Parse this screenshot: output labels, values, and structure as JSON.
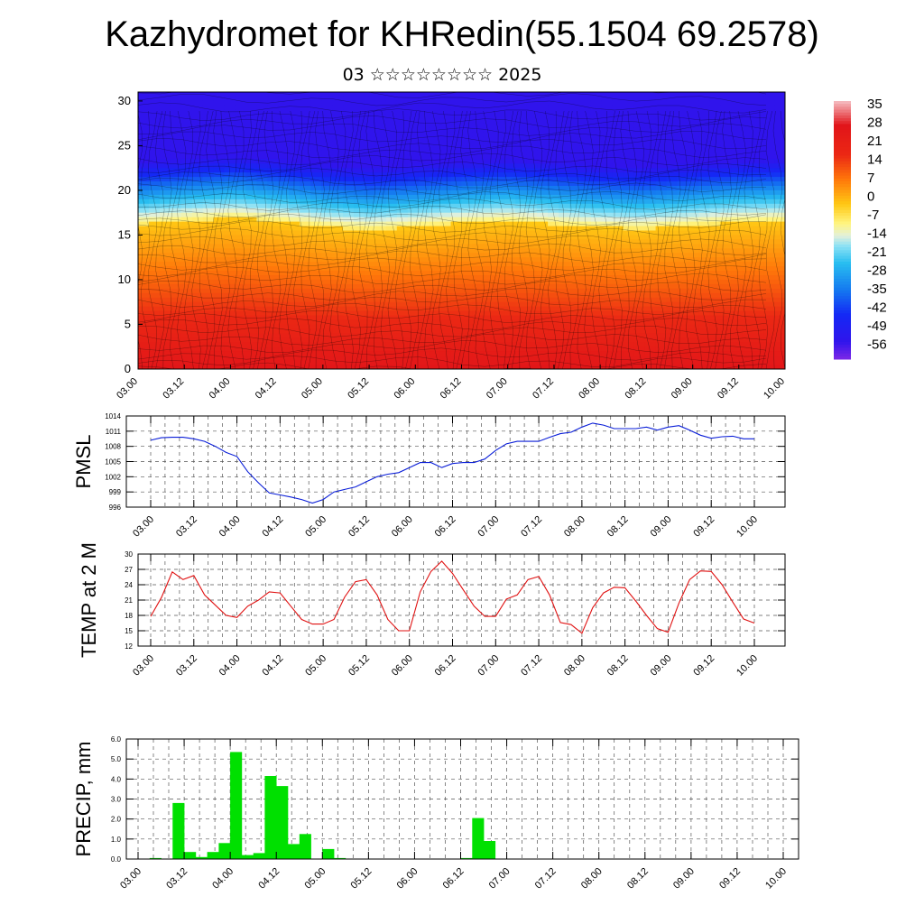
{
  "title": "Kazhydromet for KHRedin(55.1504 69.2578)",
  "subtitle": "03 ☆☆☆☆☆☆☆☆ 2025",
  "colors": {
    "pmsl": "#0a1ed8",
    "temp": "#e01010",
    "precip": "#00e000",
    "frame": "#000000"
  },
  "chart_data": [
    {
      "type": "heatmap",
      "panel": "vertical-cross-section",
      "y_ticks": [
        "0",
        "5",
        "10",
        "15",
        "20",
        "25",
        "30"
      ],
      "ylim": [
        0,
        31
      ],
      "x_ticks": [
        "03.00",
        "03.12",
        "04.00",
        "04.12",
        "05.00",
        "05.12",
        "06.00",
        "06.12",
        "07.00",
        "07.12",
        "08.00",
        "08.12",
        "09.00",
        "09.12",
        "10.00"
      ],
      "colorbar_labels": [
        "35",
        "28",
        "21",
        "14",
        "7",
        "0",
        "-7",
        "-14",
        "-21",
        "-28",
        "-35",
        "-42",
        "-49",
        "-56"
      ],
      "colorbar_range": [
        -63,
        42
      ],
      "freezing_level": [
        16.2,
        16.6,
        16.9,
        16.5,
        15.9,
        15.6,
        15.9,
        16.3,
        16.5,
        16.2,
        15.8,
        15.7,
        16.0,
        16.4,
        16.5
      ]
    },
    {
      "type": "line",
      "name": "PMSL",
      "ylabel": "PMSL",
      "y_ticks": [
        "1014",
        "1011",
        "1008",
        "1005",
        "1002",
        "999",
        "996"
      ],
      "ylim": [
        996,
        1014
      ],
      "x_ticks": [
        "03.00",
        "03.12",
        "04.00",
        "04.12",
        "05.00",
        "05.12",
        "06.00",
        "06.12",
        "07.00",
        "07.12",
        "08.00",
        "08.12",
        "09.00",
        "09.12",
        "10.00"
      ],
      "values": [
        1009.2,
        1009.7,
        1009.8,
        1009.8,
        1009.5,
        1009.0,
        1008.0,
        1006.8,
        1006.0,
        1003.0,
        1000.8,
        998.8,
        998.4,
        998.0,
        997.5,
        996.8,
        997.5,
        999.0,
        999.5,
        1000.0,
        1001.0,
        1002.0,
        1002.5,
        1002.8,
        1003.8,
        1004.8,
        1004.8,
        1003.8,
        1004.6,
        1004.8,
        1004.8,
        1005.5,
        1007.2,
        1008.5,
        1009.0,
        1009.0,
        1009.0,
        1009.8,
        1010.5,
        1010.8,
        1011.8,
        1012.6,
        1012.2,
        1011.5,
        1011.5,
        1011.5,
        1011.8,
        1011.2,
        1011.8,
        1012.1,
        1011.2,
        1010.2,
        1009.6,
        1009.9,
        1010.0,
        1009.5,
        1009.5
      ]
    },
    {
      "type": "line",
      "name": "TEMP at 2 M",
      "ylabel": "TEMP at 2 M",
      "y_ticks": [
        "30",
        "27",
        "24",
        "21",
        "18",
        "15",
        "12"
      ],
      "ylim": [
        12,
        30
      ],
      "x_ticks": [
        "03.00",
        "03.12",
        "04.00",
        "04.12",
        "05.00",
        "05.12",
        "06.00",
        "06.12",
        "07.00",
        "07.12",
        "08.00",
        "08.12",
        "09.00",
        "09.12",
        "10.00"
      ],
      "values": [
        17.8,
        21.5,
        26.5,
        25.0,
        25.8,
        22.0,
        20.0,
        18.0,
        17.6,
        19.8,
        21.0,
        22.6,
        22.4,
        19.8,
        17.2,
        16.3,
        16.3,
        17.2,
        21.6,
        24.6,
        25.0,
        22.0,
        17.2,
        15.0,
        15.0,
        22.6,
        26.6,
        28.6,
        26.2,
        23.0,
        19.8,
        17.8,
        17.8,
        21.2,
        22.0,
        25.0,
        25.6,
        22.0,
        16.6,
        16.2,
        14.5,
        19.5,
        22.4,
        23.5,
        23.4,
        20.8,
        18.0,
        15.4,
        14.7,
        20.4,
        25.0,
        26.7,
        26.6,
        24.0,
        20.6,
        17.3,
        16.5
      ]
    },
    {
      "type": "bar",
      "name": "PRECIP, mm",
      "ylabel": "PRECIP, mm",
      "y_ticks": [
        "6.0",
        "5.0",
        "4.0",
        "3.0",
        "2.0",
        "1.0",
        "0.0"
      ],
      "ylim": [
        0,
        6
      ],
      "x_ticks": [
        "03.00",
        "03.12",
        "04.00",
        "04.12",
        "05.00",
        "05.12",
        "06.00",
        "06.12",
        "07.00",
        "07.12",
        "08.00",
        "08.12",
        "09.00",
        "09.12",
        "10.00"
      ],
      "values": [
        0.0,
        0.05,
        0.0,
        2.8,
        0.35,
        0.1,
        0.35,
        0.8,
        5.35,
        0.2,
        0.3,
        4.15,
        3.65,
        0.75,
        1.25,
        0.0,
        0.5,
        0.05,
        0.0,
        0.0,
        0.0,
        0.0,
        0.0,
        0.0,
        0.0,
        0.0,
        0.0,
        0.0,
        0.05,
        2.05,
        0.9,
        0.0,
        0.0,
        0.0,
        0.0,
        0.0,
        0.0,
        0.0,
        0.0,
        0.0,
        0.0,
        0.0,
        0.0,
        0.0,
        0.0,
        0.0,
        0.0,
        0.0,
        0.0,
        0.0,
        0.0,
        0.0,
        0.0,
        0.0,
        0.0,
        0.0
      ]
    }
  ]
}
